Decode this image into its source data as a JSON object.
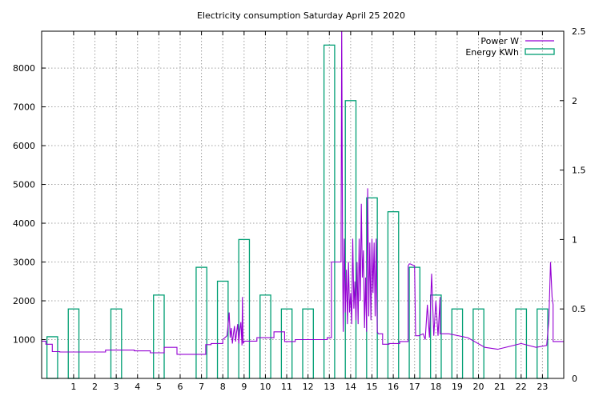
{
  "chart_data": {
    "type": "bar",
    "title": "Electricity consumption Saturday April 25 2020",
    "xlabel": "",
    "ylabel": "",
    "y2label": "",
    "xlim": [
      -0.5,
      24.0
    ],
    "ylim": [
      0,
      8950
    ],
    "y2lim": [
      0,
      2.5
    ],
    "grid": true,
    "legend_position": "top-right",
    "x_ticks": [
      1,
      2,
      3,
      4,
      5,
      6,
      7,
      8,
      9,
      10,
      11,
      12,
      13,
      14,
      15,
      16,
      17,
      18,
      19,
      20,
      21,
      22,
      23
    ],
    "y_ticks": [
      1000,
      2000,
      3000,
      4000,
      5000,
      6000,
      7000,
      8000
    ],
    "y2_ticks": [
      0,
      0.5,
      1,
      1.5,
      2,
      2.5
    ],
    "colors": {
      "power": "#9400d3",
      "energy": "#009e73"
    },
    "series": [
      {
        "name": "Power W",
        "type": "line",
        "axis": "left",
        "x": [
          -0.5,
          -0.3,
          -0.3,
          0,
          0,
          0.35,
          0.35,
          2.5,
          2.5,
          3.85,
          3.85,
          4.6,
          4.6,
          5.25,
          5.25,
          5.85,
          5.85,
          7.2,
          7.2,
          7.45,
          7.45,
          8.0,
          8.0,
          8.2,
          8.25,
          8.3,
          8.35,
          8.4,
          8.45,
          8.5,
          8.55,
          8.6,
          8.65,
          8.7,
          8.75,
          8.8,
          8.85,
          8.9,
          8.92,
          8.95,
          9.0,
          9.0,
          9.6,
          9.6,
          10.4,
          10.4,
          10.9,
          10.9,
          11.4,
          11.4,
          12.0,
          12.0,
          12.9,
          12.9,
          13.1,
          13.1,
          13.55,
          13.58,
          13.62,
          13.65,
          13.7,
          13.75,
          13.8,
          13.85,
          13.9,
          13.95,
          14.0,
          14.05,
          14.1,
          14.15,
          14.2,
          14.25,
          14.3,
          14.35,
          14.4,
          14.45,
          14.5,
          14.55,
          14.6,
          14.65,
          14.7,
          14.75,
          14.8,
          14.85,
          14.9,
          14.95,
          15.0,
          15.05,
          15.1,
          15.15,
          15.2,
          15.25,
          15.3,
          15.35,
          15.4,
          15.5,
          15.5,
          15.8,
          15.8,
          16.3,
          16.3,
          16.7,
          16.7,
          16.75,
          16.8,
          17.0,
          17.05,
          17.2,
          17.4,
          17.5,
          17.6,
          17.7,
          17.8,
          17.9,
          18.0,
          18.1,
          18.2,
          18.2,
          18.6,
          18.6,
          19.5,
          19.5,
          20.3,
          20.3,
          20.9,
          20.9,
          22.0,
          22.0,
          22.7,
          22.7,
          23.2,
          23.2,
          23.3,
          23.38,
          23.45,
          23.5,
          23.5,
          24.0
        ],
        "values": [
          960,
          960,
          880,
          880,
          690,
          690,
          680,
          680,
          730,
          730,
          710,
          710,
          660,
          660,
          800,
          800,
          620,
          620,
          870,
          870,
          900,
          900,
          1000,
          1100,
          1400,
          1700,
          1050,
          1300,
          900,
          1150,
          1350,
          950,
          1200,
          1400,
          900,
          1250,
          1450,
          850,
          2100,
          900,
          950,
          960,
          960,
          1050,
          1050,
          1200,
          1200,
          950,
          950,
          1000,
          1000,
          1000,
          1000,
          1050,
          1050,
          3000,
          3000,
          9300,
          3200,
          1200,
          3600,
          1700,
          2800,
          1400,
          3000,
          1700,
          2200,
          1400,
          3600,
          1800,
          2500,
          1500,
          3000,
          1400,
          3600,
          2000,
          4500,
          2600,
          3300,
          1300,
          2600,
          1200,
          4900,
          1600,
          3500,
          1500,
          3600,
          2200,
          3500,
          1600,
          3600,
          1200,
          1150,
          1150,
          1150,
          1150,
          880,
          880,
          900,
          900,
          950,
          950,
          2900,
          2950,
          2950,
          2900,
          1100,
          1100,
          1150,
          1000,
          1900,
          1050,
          2700,
          1100,
          2000,
          1100,
          2100,
          1150,
          1150,
          1150,
          1050,
          1050,
          800,
          800,
          750,
          750,
          900,
          900,
          800,
          800,
          850,
          850,
          1500,
          3000,
          2100,
          1900,
          950,
          950
        ]
      },
      {
        "name": "Energy KWh",
        "type": "bar",
        "axis": "right",
        "x": [
          0,
          1,
          2,
          3,
          4,
          5,
          6,
          7,
          8,
          9,
          10,
          11,
          12,
          13,
          14,
          15,
          16,
          17,
          18,
          19,
          20,
          21,
          22,
          23
        ],
        "values": [
          0.3,
          0.5,
          0,
          0.5,
          0,
          0.6,
          0,
          0.8,
          0.7,
          1.0,
          0.6,
          0.5,
          0.5,
          2.4,
          2.0,
          1.3,
          1.2,
          0.8,
          0.6,
          0.5,
          0.5,
          0,
          0.5,
          0.5
        ]
      }
    ]
  }
}
